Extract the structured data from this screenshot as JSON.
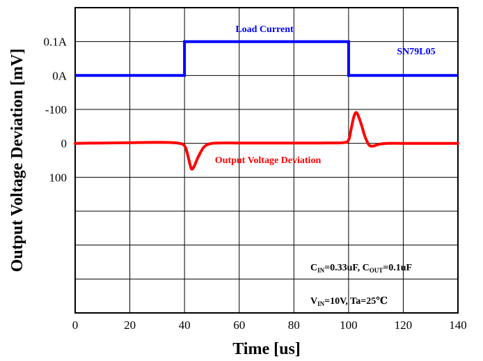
{
  "chart_data": {
    "type": "line",
    "xlabel": "Time [us]",
    "ylabel": "Output Voltage Deviation [mV]",
    "xlim": [
      0,
      140
    ],
    "x_ticks": [
      "0",
      "20",
      "40",
      "60",
      "80",
      "100",
      "120",
      "140"
    ],
    "y_tick_labels": [
      "0.1A",
      "0A",
      "-100",
      "0",
      "100"
    ],
    "grid": true,
    "device_label": "SN79L05",
    "conditions": {
      "line1": {
        "c": "C",
        "in_sub": "IN",
        "mid": "=0.33uF, C",
        "out_sub": "OUT",
        "end": "=0.1uF"
      },
      "line2": {
        "v": "V",
        "in_sub": "IN",
        "end": "=10V, Ta=25℃"
      }
    },
    "series": [
      {
        "name": "Load Current",
        "color": "#0000ff",
        "unit": "A",
        "points": [
          [
            0,
            0
          ],
          [
            40,
            0
          ],
          [
            40,
            0.1
          ],
          [
            100,
            0.1
          ],
          [
            100,
            0
          ],
          [
            140,
            0
          ]
        ]
      },
      {
        "name": "Output Voltage Deviation",
        "color": "#ff0000",
        "unit": "mV",
        "points": [
          [
            0,
            0
          ],
          [
            10,
            -1
          ],
          [
            20,
            -2
          ],
          [
            30,
            -3
          ],
          [
            36,
            -2
          ],
          [
            38,
            0
          ],
          [
            39.5,
            3
          ],
          [
            40.5,
            15
          ],
          [
            41.5,
            45
          ],
          [
            42.5,
            75
          ],
          [
            43.5,
            68
          ],
          [
            45,
            40
          ],
          [
            47,
            12
          ],
          [
            49,
            2
          ],
          [
            52,
            -1
          ],
          [
            60,
            -1
          ],
          [
            70,
            -1
          ],
          [
            80,
            -1
          ],
          [
            90,
            -1
          ],
          [
            98,
            -2
          ],
          [
            100,
            -10
          ],
          [
            101,
            -45
          ],
          [
            102,
            -80
          ],
          [
            103,
            -90
          ],
          [
            104.5,
            -60
          ],
          [
            106,
            -20
          ],
          [
            107.5,
            5
          ],
          [
            109,
            8
          ],
          [
            111,
            3
          ],
          [
            114,
            0
          ],
          [
            120,
            0
          ],
          [
            130,
            0
          ],
          [
            140,
            0
          ]
        ]
      }
    ]
  }
}
